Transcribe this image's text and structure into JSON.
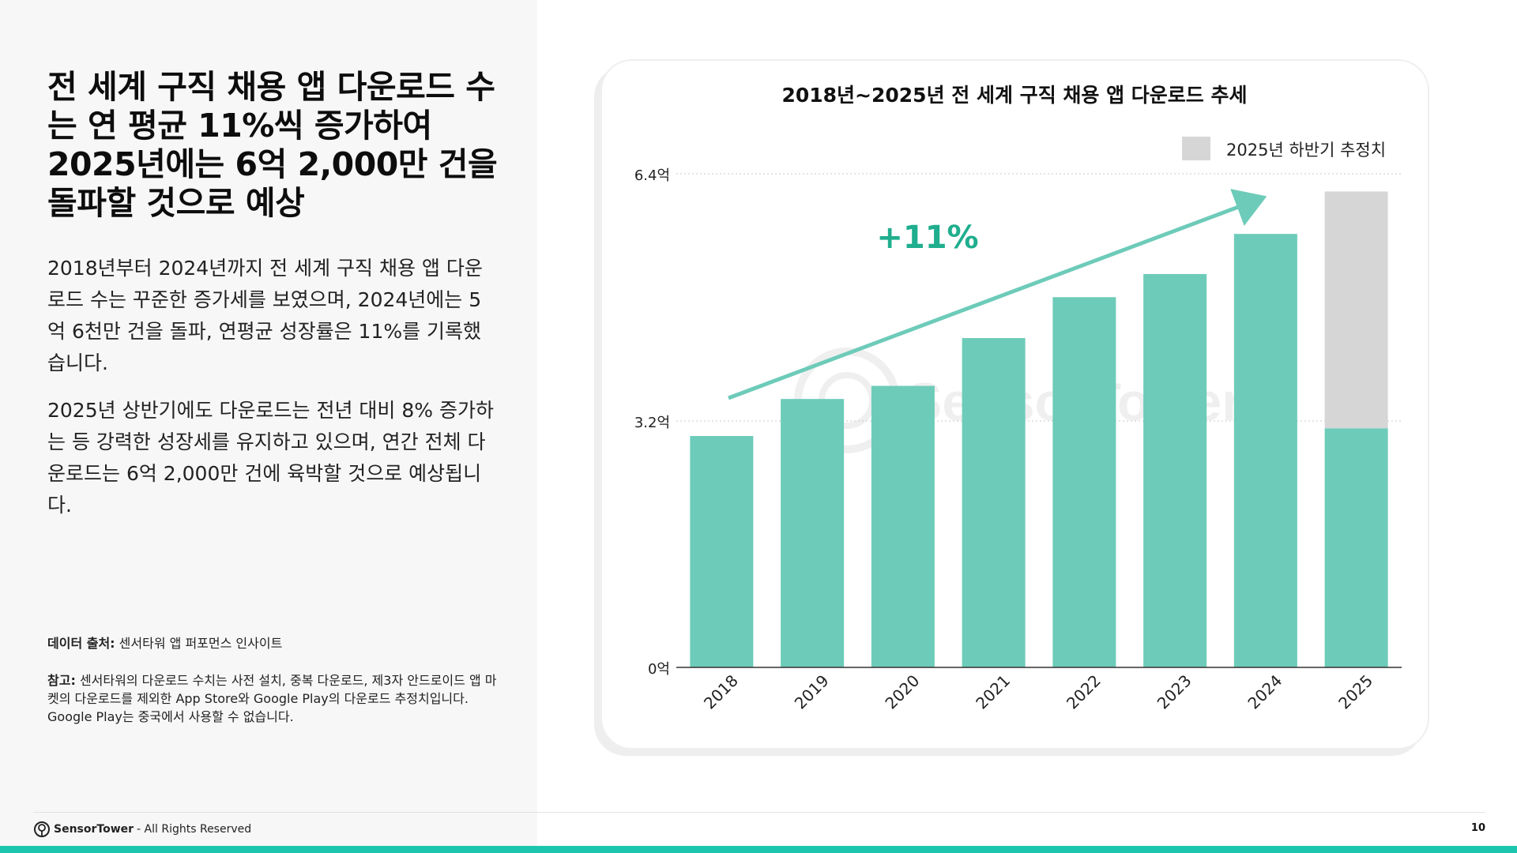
{
  "headline": "전 세계 구직 채용 앱 다운로드 수는 연 평균 11%씩 증가하여 2025년에는 6억 2,000만 건을 돌파할 것으로 예상",
  "paragraphs": [
    "2018년부터 2024년까지 전 세계 구직 채용 앱 다운로드 수는 꾸준한 증가세를 보였으며, 2024년에는 5억 6천만 건을 돌파, 연평균 성장률은 11%를 기록했습니다.",
    "2025년 상반기에도 다운로드는 전년 대비 8% 증가하는 등 강력한 성장세를 유지하고 있으며, 연간 전체 다운로드는 6억 2,000만 건에 육박할 것으로 예상됩니다."
  ],
  "source": {
    "label": "데이터 출처:",
    "text": "센서타워 앱 퍼포먼스 인사이트"
  },
  "note": {
    "label": "참고:",
    "text": "센서타워의 다운로드 수치는 사전 설치, 중복 다운로드, 제3자 안드로이드 앱 마켓의 다운로드를 제외한 App Store와 Google Play의 다운로드 추정치입니다. Google Play는 중국에서 사용할 수 없습니다."
  },
  "chart_data": {
    "type": "bar",
    "title": "2018년~2025년 전 세계 구직 채용 앱 다운로드 추세",
    "categories": [
      "2018",
      "2019",
      "2020",
      "2021",
      "2022",
      "2023",
      "2024",
      "2025"
    ],
    "series": [
      {
        "values": [
          3.0,
          3.48,
          3.65,
          4.27,
          4.8,
          5.1,
          5.62,
          3.1
        ],
        "color": "#6dcbb9"
      },
      {
        "name": "2025년 하반기 추정치",
        "values": [
          0,
          0,
          0,
          0,
          0,
          0,
          0,
          3.07
        ],
        "color": "#d6d6d6"
      }
    ],
    "yticks": [
      "0억",
      "3.2억",
      "6.4억"
    ],
    "ylim": [
      0,
      6.4
    ],
    "grid": true,
    "legend": "top-right",
    "annotation": {
      "text": "+11%",
      "color": "#1fae8e"
    },
    "watermark": "SensorTower"
  },
  "footer": {
    "brand": "SensorTower",
    "rights": "- All Rights Reserved",
    "page": "10"
  },
  "colors": {
    "accent": "#1cc6ae",
    "bar": "#6dcbb9",
    "projection": "#d6d6d6",
    "arrow": "#6dcbb9",
    "annotation": "#1fae8e"
  }
}
